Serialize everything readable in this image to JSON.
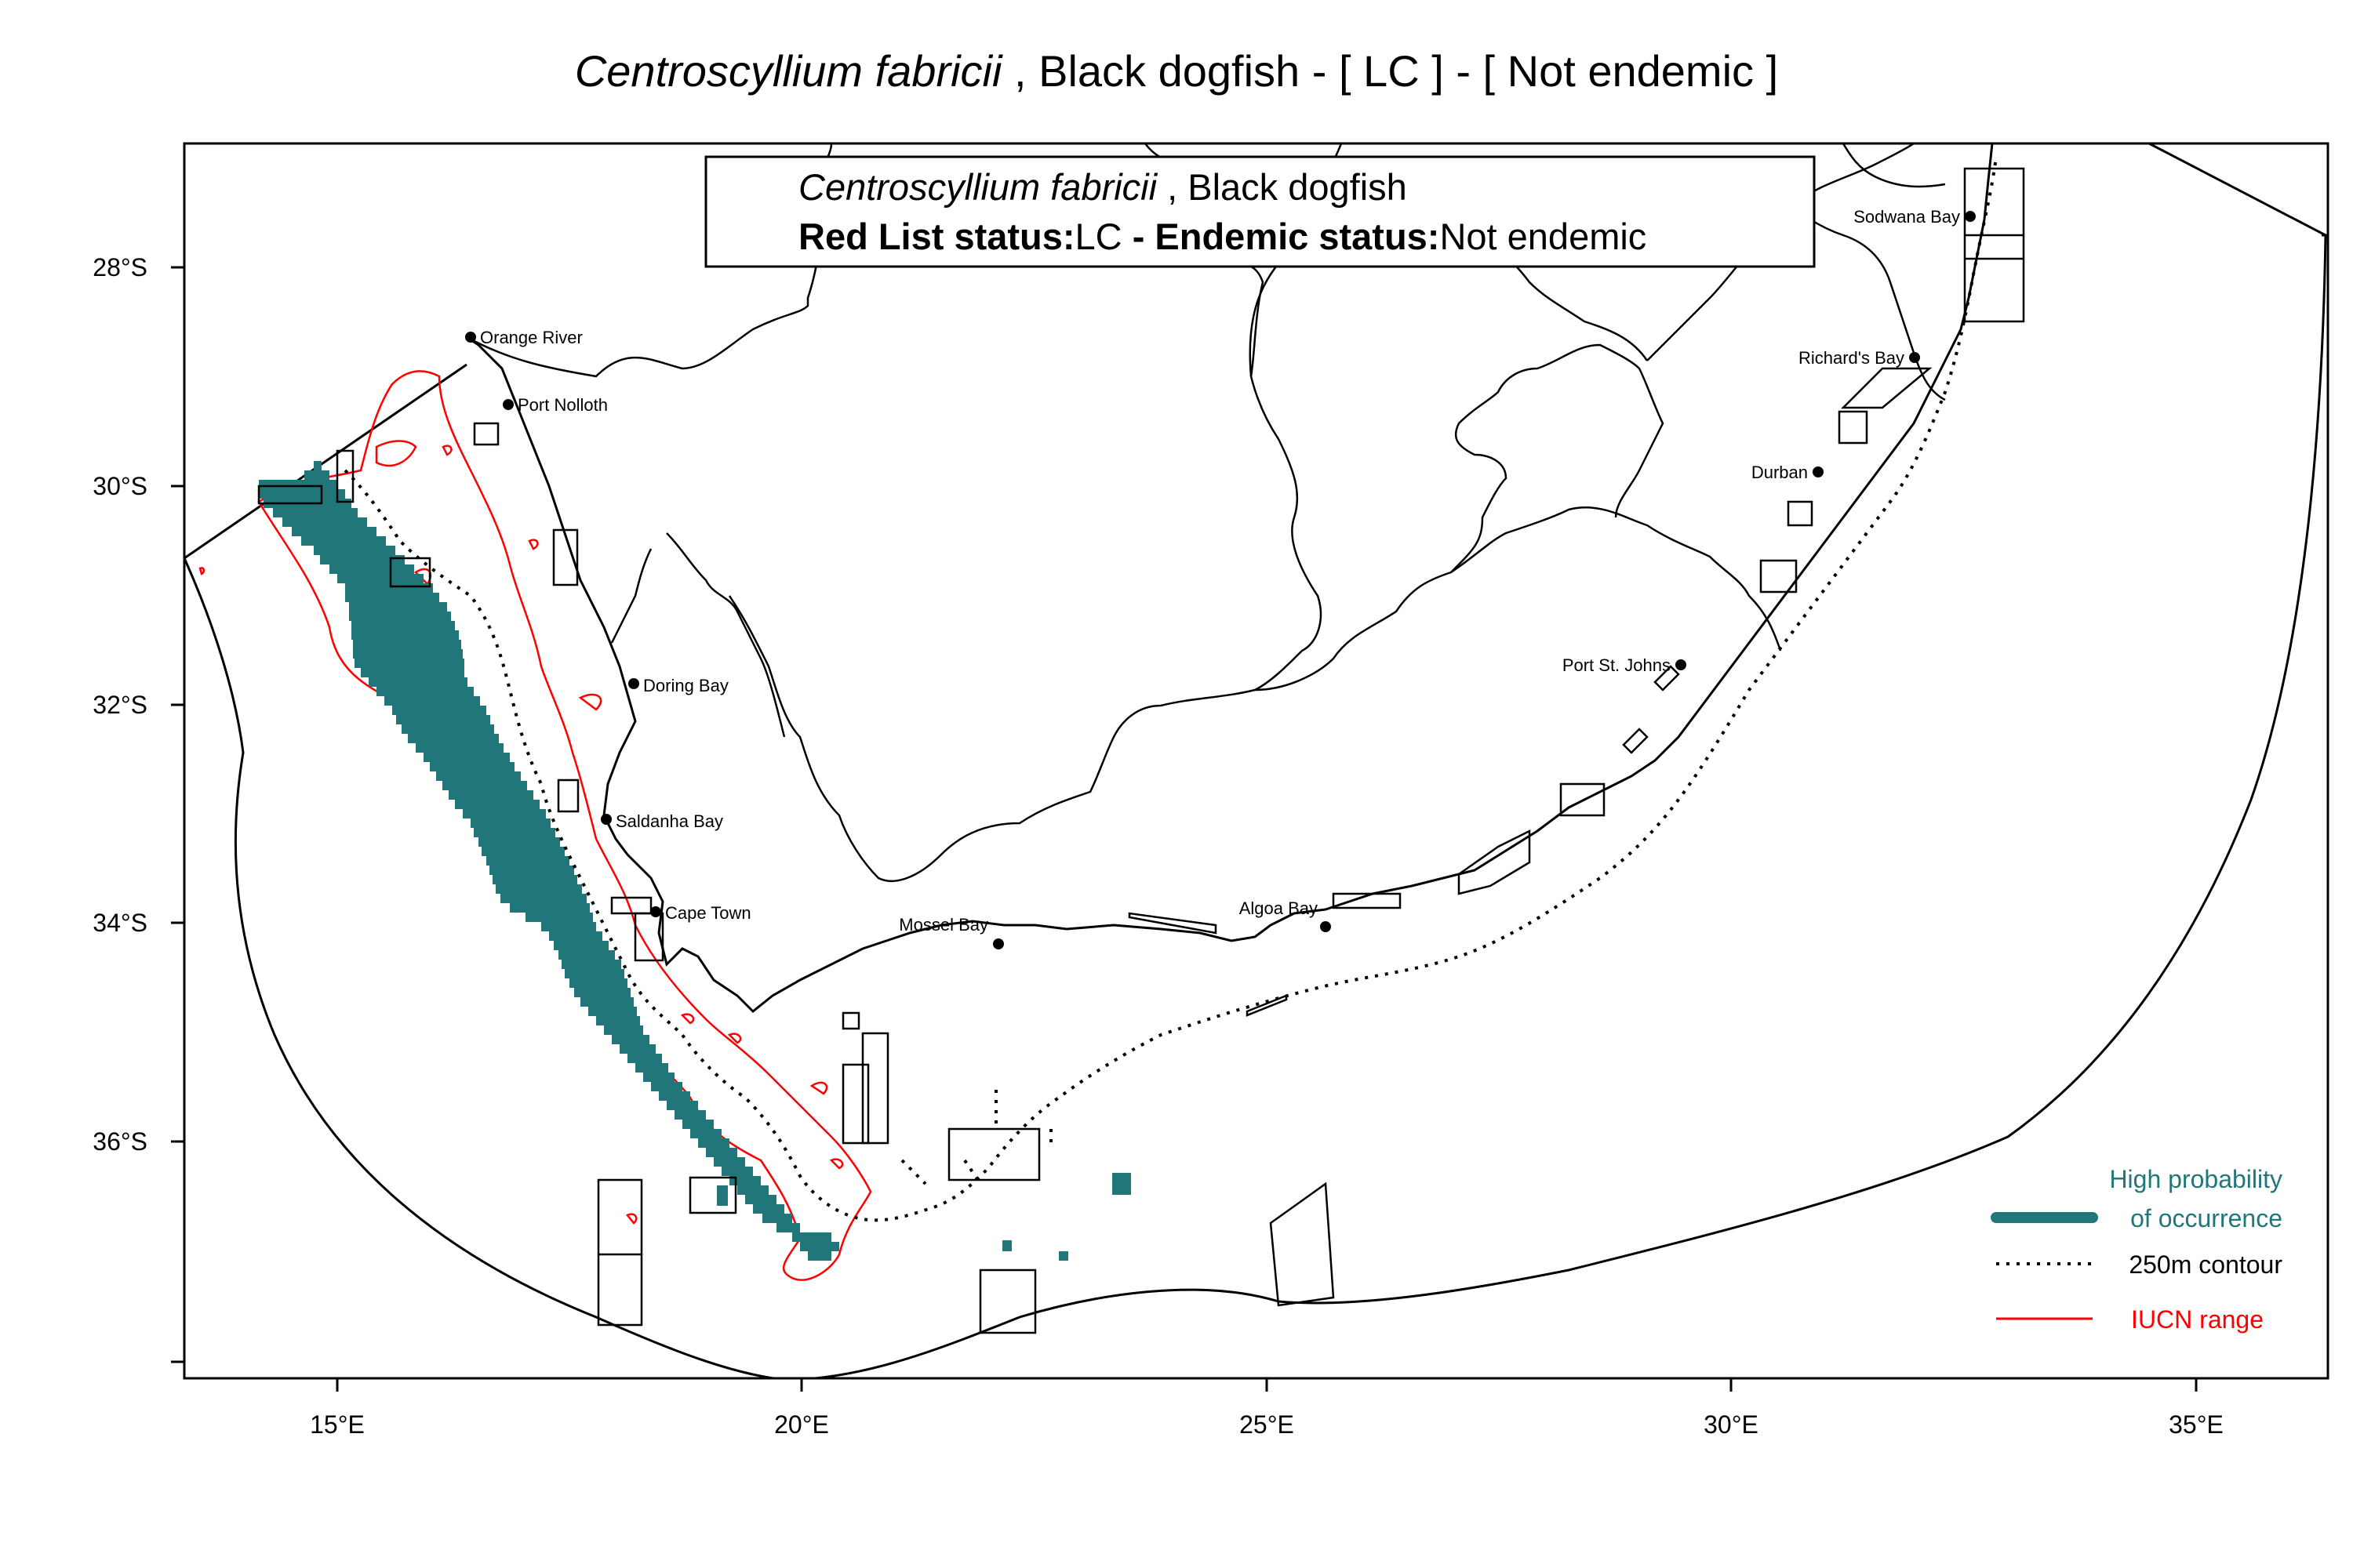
{
  "title": {
    "species": "Centroscyllium fabricii",
    "rest": " , Black dogfish  - [ LC ] - [ Not endemic ]"
  },
  "info_box": {
    "species": "Centroscyllium fabricii",
    "common": " , Black dogfish",
    "redlist_label": "Red List status:",
    "redlist_value": "LC",
    "endemic_label": " - Endemic status:",
    "endemic_value": "Not endemic"
  },
  "axes": {
    "x_ticks": [
      "15°E",
      "20°E",
      "25°E",
      "30°E",
      "35°E"
    ],
    "y_ticks": [
      "28°S",
      "30°S",
      "32°S",
      "34°S",
      "36°S"
    ]
  },
  "places": [
    {
      "name": "Orange River"
    },
    {
      "name": "Port Nolloth"
    },
    {
      "name": "Doring Bay"
    },
    {
      "name": "Saldanha Bay"
    },
    {
      "name": "Cape Town"
    },
    {
      "name": "Mossel Bay"
    },
    {
      "name": "Algoa Bay"
    },
    {
      "name": "Port St. Johns"
    },
    {
      "name": "Durban"
    },
    {
      "name": "Richard's Bay"
    },
    {
      "name": "Sodwana Bay"
    }
  ],
  "legend": {
    "high_prob_line1": "High probability",
    "high_prob_line2": "of occurrence",
    "contour": "250m contour",
    "iucn": "IUCN range"
  },
  "colors": {
    "occurrence": "#21767a",
    "iucn": "#ff0000",
    "outline": "#000000"
  }
}
